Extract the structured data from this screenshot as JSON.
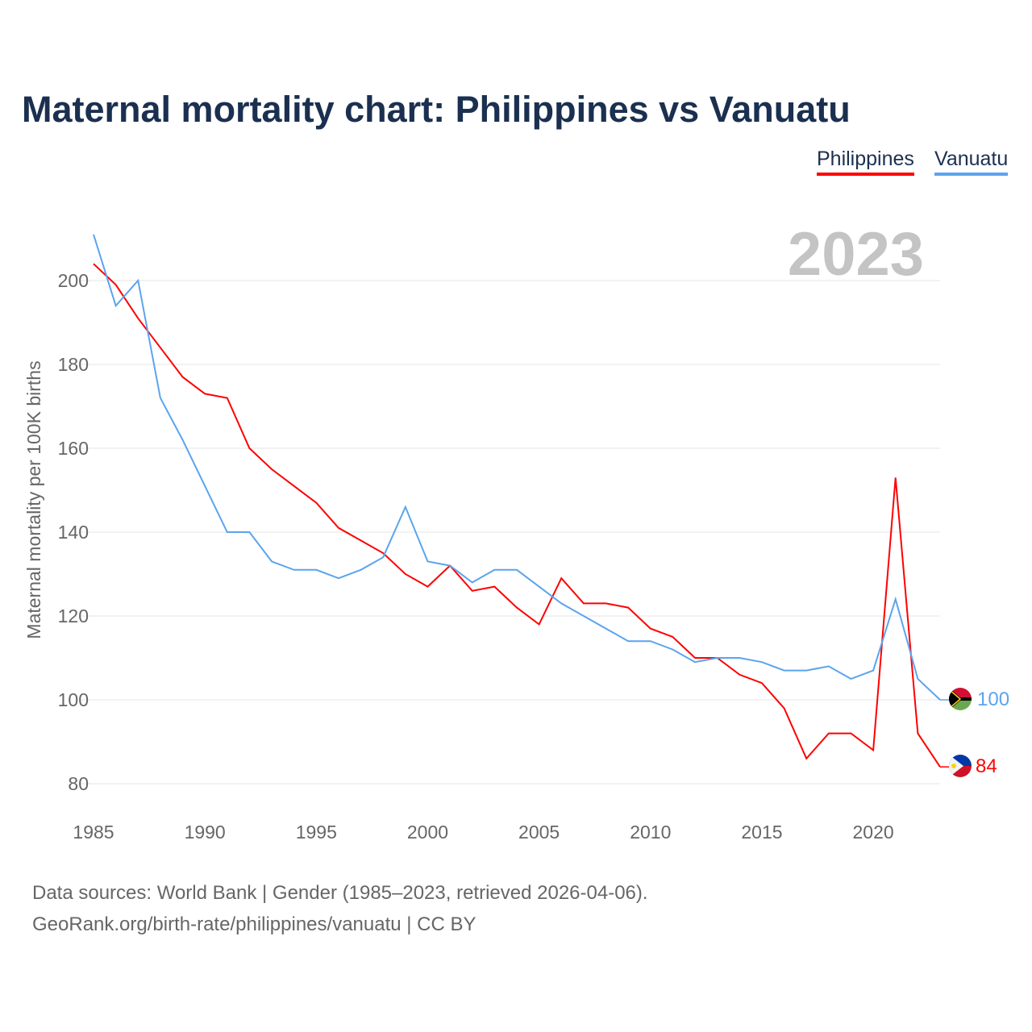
{
  "chart_data": {
    "type": "line",
    "title": "Maternal mortality chart: Philippines vs Vanuatu",
    "xlabel": "",
    "ylabel": "Maternal mortality per 100K births",
    "year_label": "2023",
    "x": [
      1985,
      1986,
      1987,
      1988,
      1989,
      1990,
      1991,
      1992,
      1993,
      1994,
      1995,
      1996,
      1997,
      1998,
      1999,
      2000,
      2001,
      2002,
      2003,
      2004,
      2005,
      2006,
      2007,
      2008,
      2009,
      2010,
      2011,
      2012,
      2013,
      2014,
      2015,
      2016,
      2017,
      2018,
      2019,
      2020,
      2021,
      2022,
      2023
    ],
    "xticks": [
      1985,
      1990,
      1995,
      2000,
      2005,
      2010,
      2015,
      2020
    ],
    "yticks": [
      80,
      100,
      120,
      140,
      160,
      180,
      200
    ],
    "xlim": [
      1985,
      2023
    ],
    "ylim": [
      80,
      200
    ],
    "grid": true,
    "legend_position": "top-right",
    "series": [
      {
        "name": "Philippines",
        "color": "#ff0000",
        "end_label": "84",
        "values": [
          204,
          199,
          191,
          184,
          177,
          173,
          172,
          160,
          155,
          151,
          147,
          141,
          138,
          135,
          130,
          127,
          132,
          126,
          127,
          122,
          118,
          129,
          123,
          123,
          122,
          117,
          115,
          110,
          110,
          106,
          104,
          98,
          86,
          92,
          92,
          88,
          153,
          92,
          84
        ]
      },
      {
        "name": "Vanuatu",
        "color": "#5ba4ee",
        "end_label": "100",
        "values": [
          211,
          194,
          200,
          172,
          162,
          151,
          140,
          140,
          133,
          131,
          131,
          129,
          131,
          134,
          146,
          133,
          132,
          128,
          131,
          131,
          127,
          123,
          120,
          117,
          114,
          114,
          112,
          109,
          110,
          110,
          109,
          107,
          107,
          108,
          105,
          107,
          124,
          105,
          100
        ]
      }
    ]
  },
  "footer": {
    "source": "Data sources: World Bank | Gender (1985–2023, retrieved 2026-04-06).",
    "credit": "GeoRank.org/birth-rate/philippines/vanuatu | CC BY"
  }
}
